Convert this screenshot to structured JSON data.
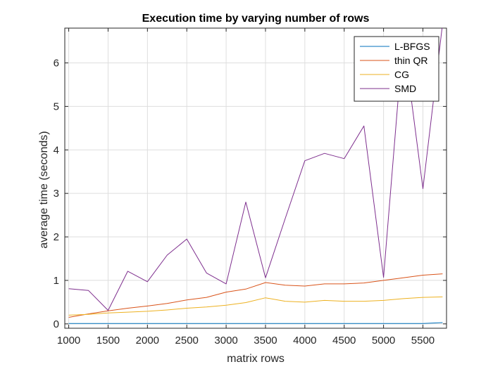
{
  "chart_data": {
    "type": "line",
    "title": "Execution time by varying number of rows",
    "xlabel": "matrix rows",
    "ylabel": "average time (seconds)",
    "xlim": [
      950,
      5800
    ],
    "ylim": [
      -0.1,
      6.8
    ],
    "xticks": [
      1000,
      1500,
      2000,
      2500,
      3000,
      3500,
      4000,
      4500,
      5000,
      5500
    ],
    "yticks": [
      0,
      1,
      2,
      3,
      4,
      5,
      6
    ],
    "grid": true,
    "legend_position": "top-right",
    "x": [
      1000,
      1250,
      1500,
      1750,
      2000,
      2250,
      2500,
      2750,
      3000,
      3250,
      3500,
      3750,
      4000,
      4250,
      4500,
      4750,
      5000,
      5250,
      5500,
      5750
    ],
    "series": [
      {
        "name": "L-BFGS",
        "color": "#0072BD",
        "values": [
          0.01,
          0.01,
          0.01,
          0.01,
          0.01,
          0.01,
          0.01,
          0.01,
          0.01,
          0.01,
          0.01,
          0.01,
          0.01,
          0.01,
          0.01,
          0.01,
          0.01,
          0.01,
          0.01,
          0.03
        ]
      },
      {
        "name": "thin QR",
        "color": "#D95319",
        "values": [
          0.15,
          0.23,
          0.3,
          0.36,
          0.41,
          0.47,
          0.55,
          0.61,
          0.73,
          0.8,
          0.95,
          0.89,
          0.87,
          0.92,
          0.92,
          0.94,
          1.0,
          1.06,
          1.12,
          1.15
        ]
      },
      {
        "name": "CG",
        "color": "#EDB120",
        "values": [
          0.2,
          0.22,
          0.25,
          0.27,
          0.29,
          0.32,
          0.36,
          0.39,
          0.43,
          0.49,
          0.6,
          0.52,
          0.5,
          0.54,
          0.52,
          0.52,
          0.54,
          0.58,
          0.61,
          0.62
        ]
      },
      {
        "name": "SMD",
        "color": "#7E2F8E",
        "values": [
          0.81,
          0.77,
          0.31,
          1.21,
          0.97,
          1.58,
          1.95,
          1.17,
          0.92,
          2.8,
          1.06,
          2.42,
          3.75,
          3.92,
          3.8,
          4.55,
          1.07,
          6.6,
          3.11,
          6.9
        ]
      }
    ]
  }
}
